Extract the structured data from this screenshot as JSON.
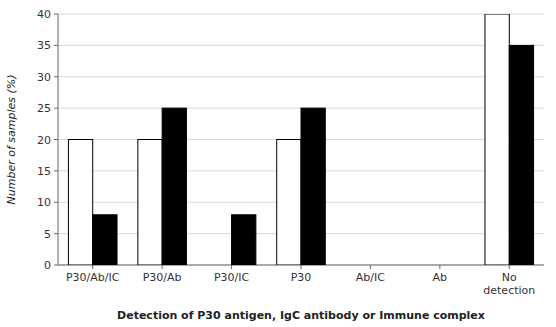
{
  "chart_data": {
    "type": "bar",
    "xlabel": "Detection of P30 antigen, IgC antibody or Immune complex",
    "ylabel": "Number of samples (%)",
    "categories": [
      "P30/Ab/IC",
      "P30/Ab",
      "P30/IC",
      "P30",
      "Ab/IC",
      "Ab",
      "No\ndetection"
    ],
    "series": [
      {
        "color": "#ffffff",
        "values": [
          20,
          20,
          0,
          20,
          0,
          0,
          40
        ]
      },
      {
        "color": "#000000",
        "values": [
          8,
          25,
          8,
          25,
          0,
          0,
          35
        ]
      }
    ],
    "ylim": [
      0,
      40
    ],
    "yticks": [
      0,
      5,
      10,
      15,
      20,
      25,
      30,
      35,
      40
    ],
    "grid": true
  }
}
